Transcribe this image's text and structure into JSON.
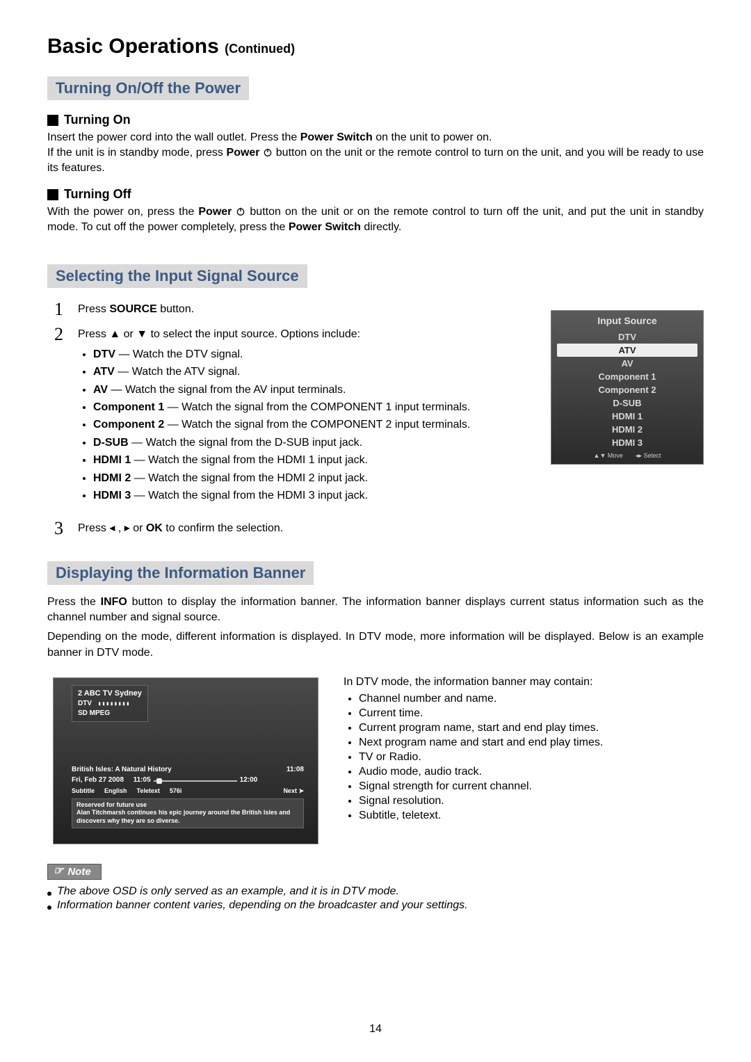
{
  "page": {
    "title_main": "Basic Operations",
    "title_cont": "(Continued)",
    "page_number": "14"
  },
  "section1": {
    "heading": "Turning On/Off the Power",
    "sub1_title": "Turning On",
    "sub1_text_a": "Insert the power cord into the wall outlet. Press the ",
    "sub1_text_b_bold": "Power Switch",
    "sub1_text_c": " on the unit to power on.",
    "sub1_text_d": "If the unit is in standby mode, press ",
    "sub1_text_e_bold": "Power",
    "sub1_text_f": " button on the unit or the remote control to turn on the unit, and you will be ready to use its features.",
    "sub2_title": "Turning Off",
    "sub2_text_a": "With the power on, press the ",
    "sub2_text_b_bold": "Power",
    "sub2_text_c": " button on the unit or on the remote control to turn off the unit, and put the unit in standby mode. To cut off the power completely, press the ",
    "sub2_text_d_bold": "Power Switch",
    "sub2_text_e": " directly."
  },
  "section2": {
    "heading": "Selecting the Input Signal Source",
    "step1_a": "Press ",
    "step1_b_bold": "SOURCE",
    "step1_c": " button.",
    "step2_intro": "Press  ▲  or  ▼  to select the input source. Options include:",
    "opts": [
      {
        "k": "DTV",
        "v": " — Watch the DTV signal."
      },
      {
        "k": "ATV",
        "v": " — Watch the ATV signal."
      },
      {
        "k": "AV",
        "v": " — Watch the signal from the AV input terminals."
      },
      {
        "k": "Component 1",
        "v": " — Watch the signal from the COMPONENT 1 input terminals."
      },
      {
        "k": "Component 2",
        "v": " — Watch the signal from the COMPONENT 2 input terminals."
      },
      {
        "k": "D-SUB",
        "v": " — Watch the signal from the D-SUB input jack."
      },
      {
        "k": "HDMI 1",
        "v": " — Watch the signal from the HDMI 1 input jack."
      },
      {
        "k": "HDMI 2",
        "v": " — Watch the signal from the HDMI 2 input jack."
      },
      {
        "k": "HDMI 3",
        "v": " — Watch the signal from the HDMI 3 input jack."
      }
    ],
    "step3_a": "Press   ◂  ,  ▸  or ",
    "step3_b_bold": "OK",
    "step3_c": " to confirm the selection.",
    "osd": {
      "title": "Input Source",
      "items": [
        "DTV",
        "ATV",
        "AV",
        "Component 1",
        "Component 2",
        "D-SUB",
        "HDMI 1",
        "HDMI 2",
        "HDMI 3"
      ],
      "selected_index": 1,
      "footer_move": "Move",
      "footer_select": "Select",
      "bg_gradient_from": "#5a5a5a",
      "bg_gradient_to": "#2a2a2a"
    }
  },
  "section3": {
    "heading": "Displaying the Information Banner",
    "para1_a": "Press the ",
    "para1_b_bold": "INFO",
    "para1_c": " button to display the information banner. The information banner displays current status information such as the channel number and signal source.",
    "para2": "Depending on the mode, different information is displayed. In DTV mode, more information will be displayed. Below is an example banner in DTV mode.",
    "right_intro": "In DTV mode, the information banner may contain:",
    "right_items": [
      "Channel number and name.",
      "Current time.",
      "Current program name, start and end play times.",
      "Next program name and start and end play times.",
      "TV or Radio.",
      "Audio mode, audio track.",
      "Signal strength for current channel.",
      "Signal resolution.",
      "Subtitle, teletext."
    ],
    "banner": {
      "channel": "2  ABC TV Sydney",
      "mode": "DTV",
      "signal_bars": "▮▮▮▮▮▮▮▮",
      "codec": "SD  MPEG",
      "prog_name": "British Isles: A Natural History",
      "clock": "11:08",
      "date": "Fri, Feb 27 2008",
      "start": "11:05",
      "end": "12:00",
      "tags": [
        "Subtitle",
        "English",
        "Teletext",
        "576i"
      ],
      "next_label": "Next ➤",
      "desc_line1": "Reserved for future use",
      "desc_line2": "Alan Titchmarsh continues his epic journey around the British Isles and discovers why they are so diverse.",
      "progress_pct": 4
    }
  },
  "note": {
    "label": "Note",
    "items": [
      "The above OSD is only served as an example, and it is in DTV mode.",
      "Information banner content varies, depending on the broadcaster and your settings."
    ]
  },
  "colors": {
    "section_heading_bg": "#d9d9d9",
    "section_heading_fg": "#3a5a84",
    "note_tab_bg": "#888888",
    "note_tab_fg": "#ffffff"
  }
}
